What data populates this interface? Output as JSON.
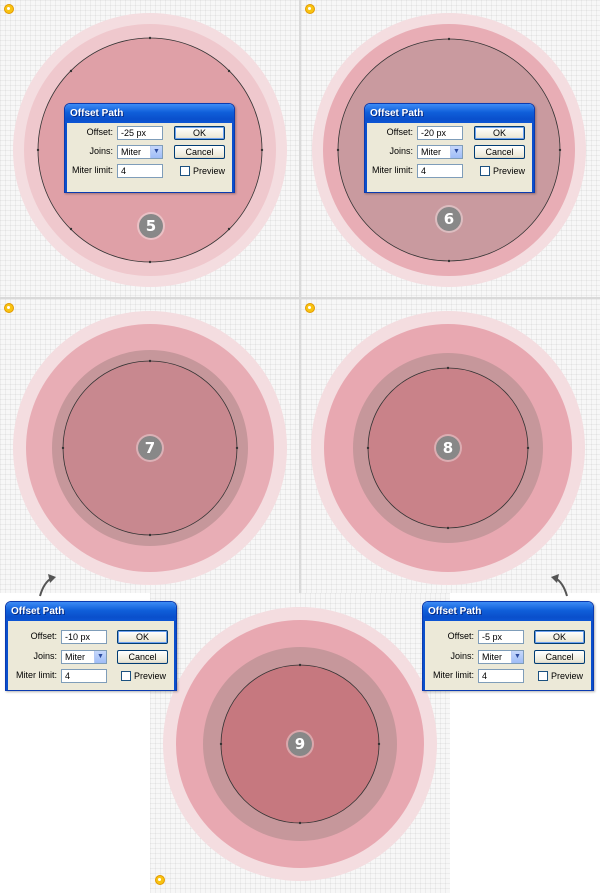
{
  "colors": {
    "outer_ring": "#f2d8dc",
    "glow": "#e9a9b1",
    "mid_gray": "#c29498",
    "core": "#d4898f",
    "path_stroke": "#333333",
    "marker_yellow": "#f8c311",
    "badge_gray": "#888888",
    "titlebar_blue": "#0a4fcc",
    "dialog_face": "#ece9d8"
  },
  "panels": [
    {
      "step": "5",
      "badge_label": "5"
    },
    {
      "step": "6",
      "badge_label": "6"
    },
    {
      "step": "7",
      "badge_label": "7"
    },
    {
      "step": "8",
      "badge_label": "8"
    },
    {
      "step": "9",
      "badge_label": "9"
    }
  ],
  "dialogs": [
    {
      "title": "Offset Path",
      "offset_label": "Offset:",
      "offset_value": "-25 px",
      "joins_label": "Joins:",
      "joins_value": "Miter",
      "miter_label": "Miter limit:",
      "miter_value": "4",
      "ok_label": "OK",
      "cancel_label": "Cancel",
      "preview_label": "Preview",
      "preview_checked": false
    },
    {
      "title": "Offset Path",
      "offset_label": "Offset:",
      "offset_value": "-20 px",
      "joins_label": "Joins:",
      "joins_value": "Miter",
      "miter_label": "Miter limit:",
      "miter_value": "4",
      "ok_label": "OK",
      "cancel_label": "Cancel",
      "preview_label": "Preview",
      "preview_checked": false
    },
    {
      "title": "Offset Path",
      "offset_label": "Offset:",
      "offset_value": "-10 px",
      "joins_label": "Joins:",
      "joins_value": "Miter",
      "miter_label": "Miter limit:",
      "miter_value": "4",
      "ok_label": "OK",
      "cancel_label": "Cancel",
      "preview_label": "Preview",
      "preview_checked": false
    },
    {
      "title": "Offset Path",
      "offset_label": "Offset:",
      "offset_value": "-5 px",
      "joins_label": "Joins:",
      "joins_value": "Miter",
      "miter_label": "Miter limit:",
      "miter_value": "4",
      "ok_label": "OK",
      "cancel_label": "Cancel",
      "preview_label": "Preview",
      "preview_checked": false
    }
  ],
  "icons": {
    "step_marker": "step-marker-icon",
    "dropdown": "chevron-down-icon",
    "arrow": "curved-arrow-icon"
  }
}
